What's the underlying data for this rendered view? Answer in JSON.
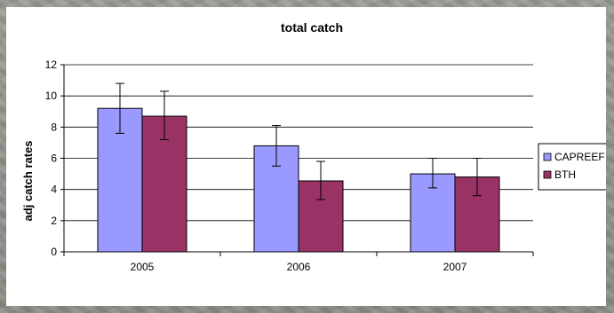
{
  "chart_data": {
    "type": "bar",
    "title": "total catch",
    "xlabel": "",
    "ylabel": "adj catch rates",
    "categories": [
      "2005",
      "2006",
      "2007"
    ],
    "yticks": [
      "0",
      "2",
      "4",
      "6",
      "8",
      "10",
      "12"
    ],
    "ylim": [
      0,
      12
    ],
    "grid": true,
    "legend_position": "right",
    "series": [
      {
        "name": "CAPREEF",
        "color": "#9999ff",
        "values": [
          9.2,
          6.8,
          5.0
        ],
        "error_low": [
          7.6,
          5.5,
          4.1
        ],
        "error_high": [
          10.8,
          8.1,
          6.0
        ]
      },
      {
        "name": "BTH",
        "color": "#993366",
        "values": [
          8.7,
          4.55,
          4.8
        ],
        "error_low": [
          7.2,
          3.35,
          3.6
        ],
        "error_high": [
          10.3,
          5.8,
          6.0
        ]
      }
    ]
  }
}
